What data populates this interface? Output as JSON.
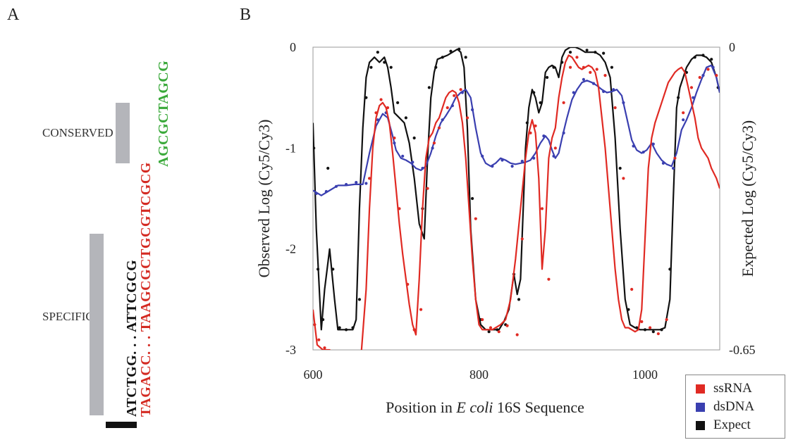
{
  "panels": {
    "a": "A",
    "b": "B"
  },
  "panel_a": {
    "conserved_label": "CONSERVED",
    "specific_label": "SPECIFIC",
    "seq_black": "ATCTGG. . . ATTCGCG",
    "seq_red": "TAGACC. . . TAAGCGCTGCGTCGCG",
    "seq_green": "AGCGCTAGCG",
    "colors": {
      "black": "#111111",
      "red": "#d42a22",
      "green": "#3aa93a",
      "bracket": "#b4b5ba"
    }
  },
  "chart_data": {
    "type": "line",
    "xlabel_prefix": "Position in ",
    "xlabel_italic": "E coli",
    "xlabel_suffix": " 16S Sequence",
    "ylabel_left": "Observed Log (Cy5/Cy3)",
    "ylabel_right": "Expected Log (Cy5/Cy3)",
    "xlim": [
      600,
      1090
    ],
    "ylim_left": [
      -3,
      0
    ],
    "ylim_right": [
      -0.65,
      0
    ],
    "x_ticks": [
      "600",
      "800",
      "1000"
    ],
    "x_tick_values": [
      600,
      800,
      1000
    ],
    "y_ticks_left": [
      "0",
      "-1",
      "-2",
      "-3"
    ],
    "y_tick_values_left": [
      0,
      -1,
      -2,
      -3
    ],
    "y_ticks_right": [
      "0",
      "-0.65"
    ],
    "y_tick_values_right": [
      0,
      -0.65
    ],
    "legend_position": "bottom-right",
    "series": [
      {
        "name": "ssRNA",
        "color": "#e02a23",
        "x": [
          600,
          605,
          612,
          620,
          628,
          636,
          645,
          652,
          658,
          664,
          668,
          672,
          676,
          680,
          684,
          688,
          692,
          696,
          700,
          704,
          708,
          712,
          716,
          720,
          724,
          728,
          732,
          736,
          740,
          744,
          748,
          752,
          756,
          760,
          764,
          768,
          772,
          776,
          780,
          784,
          788,
          792,
          796,
          800,
          804,
          808,
          812,
          816,
          820,
          826,
          832,
          838,
          844,
          850,
          856,
          860,
          864,
          868,
          872,
          876,
          880,
          884,
          888,
          892,
          896,
          900,
          904,
          908,
          912,
          916,
          920,
          924,
          928,
          932,
          936,
          940,
          944,
          948,
          952,
          956,
          960,
          964,
          968,
          972,
          976,
          980,
          984,
          988,
          992,
          996,
          1000,
          1004,
          1008,
          1012,
          1016,
          1020,
          1024,
          1028,
          1032,
          1036,
          1040,
          1044,
          1048,
          1052,
          1056,
          1060,
          1064,
          1068,
          1072,
          1076,
          1080,
          1086,
          1090
        ],
        "y": [
          -2.6,
          -2.95,
          -3.0,
          -3.0,
          -3.05,
          -3.1,
          -3.1,
          -3.1,
          -3.05,
          -2.4,
          -1.6,
          -1.0,
          -0.7,
          -0.58,
          -0.55,
          -0.6,
          -0.75,
          -1.05,
          -1.4,
          -1.75,
          -2.05,
          -2.3,
          -2.55,
          -2.75,
          -2.85,
          -2.3,
          -1.6,
          -1.1,
          -0.9,
          -0.85,
          -0.75,
          -0.7,
          -0.6,
          -0.5,
          -0.45,
          -0.43,
          -0.45,
          -0.55,
          -0.75,
          -1.1,
          -1.6,
          -2.1,
          -2.5,
          -2.75,
          -2.8,
          -2.8,
          -2.8,
          -2.8,
          -2.78,
          -2.75,
          -2.7,
          -2.5,
          -2.1,
          -1.6,
          -1.1,
          -0.85,
          -0.72,
          -0.85,
          -1.3,
          -2.2,
          -1.8,
          -1.1,
          -0.9,
          -0.8,
          -0.5,
          -0.3,
          -0.15,
          -0.08,
          -0.1,
          -0.15,
          -0.2,
          -0.22,
          -0.2,
          -0.18,
          -0.2,
          -0.25,
          -0.4,
          -0.7,
          -1.0,
          -1.4,
          -1.8,
          -2.2,
          -2.5,
          -2.7,
          -2.78,
          -2.78,
          -2.8,
          -2.82,
          -2.8,
          -2.6,
          -1.9,
          -1.2,
          -0.9,
          -0.75,
          -0.65,
          -0.55,
          -0.45,
          -0.35,
          -0.3,
          -0.25,
          -0.22,
          -0.2,
          -0.25,
          -0.4,
          -0.55,
          -0.7,
          -0.9,
          -1.0,
          -1.05,
          -1.1,
          -1.2,
          -1.3,
          -1.4
        ],
        "points_x": [
          602,
          607,
          614,
          622,
          630,
          668,
          676,
          682,
          690,
          698,
          704,
          714,
          722,
          730,
          738,
          746,
          752,
          762,
          770,
          778,
          786,
          796,
          804,
          814,
          824,
          834,
          846,
          852,
          862,
          868,
          876,
          884,
          892,
          902,
          910,
          918,
          926,
          934,
          942,
          952,
          964,
          974,
          984,
          996,
          1006,
          1016,
          1026,
          1036,
          1046,
          1056,
          1066,
          1076,
          1086
        ],
        "points_y": [
          -2.75,
          -2.9,
          -2.98,
          -3.05,
          -3.1,
          -1.3,
          -0.65,
          -0.52,
          -0.6,
          -0.9,
          -1.6,
          -2.35,
          -2.8,
          -2.6,
          -1.4,
          -0.95,
          -0.8,
          -0.6,
          -0.48,
          -0.42,
          -0.7,
          -1.7,
          -2.7,
          -2.78,
          -2.82,
          -2.76,
          -2.85,
          -1.9,
          -0.85,
          -0.78,
          -1.6,
          -2.3,
          -1.0,
          -0.55,
          -0.2,
          -0.1,
          -0.2,
          -0.25,
          -0.22,
          -0.28,
          -0.6,
          -1.3,
          -2.4,
          -2.72,
          -2.78,
          -2.84,
          -2.7,
          -1.1,
          -0.65,
          -0.4,
          -0.3,
          -0.22,
          -0.28
        ]
      },
      {
        "name": "dsDNA",
        "color": "#3a3fb0",
        "x": [
          600,
          610,
          620,
          630,
          640,
          650,
          660,
          668,
          676,
          684,
          690,
          696,
          700,
          706,
          712,
          718,
          724,
          730,
          736,
          742,
          748,
          754,
          760,
          766,
          772,
          778,
          784,
          790,
          796,
          802,
          808,
          814,
          820,
          826,
          832,
          838,
          844,
          850,
          856,
          862,
          868,
          874,
          880,
          884,
          888,
          892,
          896,
          900,
          906,
          912,
          918,
          924,
          930,
          936,
          942,
          948,
          954,
          960,
          966,
          972,
          978,
          984,
          990,
          996,
          1002,
          1008,
          1014,
          1020,
          1026,
          1032,
          1038,
          1044,
          1050,
          1056,
          1062,
          1068,
          1074,
          1080,
          1086,
          1090
        ],
        "y": [
          -1.42,
          -1.47,
          -1.42,
          -1.37,
          -1.37,
          -1.36,
          -1.36,
          -1.05,
          -0.78,
          -0.66,
          -0.7,
          -0.88,
          -1.02,
          -1.1,
          -1.12,
          -1.15,
          -1.2,
          -1.22,
          -1.18,
          -1.05,
          -0.88,
          -0.75,
          -0.68,
          -0.6,
          -0.5,
          -0.45,
          -0.42,
          -0.5,
          -0.8,
          -1.05,
          -1.15,
          -1.18,
          -1.15,
          -1.1,
          -1.12,
          -1.15,
          -1.16,
          -1.15,
          -1.14,
          -1.12,
          -1.05,
          -0.95,
          -0.88,
          -0.92,
          -1.02,
          -1.1,
          -1.05,
          -0.9,
          -0.7,
          -0.52,
          -0.42,
          -0.35,
          -0.33,
          -0.35,
          -0.38,
          -0.42,
          -0.45,
          -0.44,
          -0.42,
          -0.48,
          -0.7,
          -0.92,
          -1.02,
          -1.05,
          -1.02,
          -0.95,
          -1.05,
          -1.12,
          -1.16,
          -1.18,
          -1.05,
          -0.82,
          -0.72,
          -0.6,
          -0.45,
          -0.32,
          -0.2,
          -0.18,
          -0.3,
          -0.45
        ],
        "points_x": [
          604,
          616,
          628,
          640,
          652,
          664,
          678,
          688,
          698,
          708,
          720,
          732,
          744,
          756,
          768,
          780,
          792,
          804,
          816,
          828,
          840,
          852,
          866,
          878,
          890,
          902,
          914,
          926,
          938,
          950,
          962,
          974,
          986,
          998,
          1010,
          1022,
          1034,
          1046,
          1058,
          1070,
          1082
        ],
        "points_y": [
          -1.45,
          -1.43,
          -1.38,
          -1.36,
          -1.34,
          -1.35,
          -0.72,
          -0.65,
          -0.95,
          -1.08,
          -1.14,
          -1.2,
          -1.0,
          -0.72,
          -0.58,
          -0.45,
          -0.62,
          -1.08,
          -1.18,
          -1.12,
          -1.18,
          -1.13,
          -1.1,
          -0.88,
          -1.08,
          -0.85,
          -0.45,
          -0.32,
          -0.36,
          -0.44,
          -0.42,
          -0.55,
          -0.98,
          -1.04,
          -0.96,
          -1.15,
          -1.2,
          -0.72,
          -0.5,
          -0.28,
          -0.2
        ]
      },
      {
        "name": "Expect",
        "color": "#111111",
        "x": [
          600,
          604,
          610,
          614,
          620,
          626,
          630,
          636,
          642,
          648,
          652,
          656,
          660,
          664,
          668,
          674,
          680,
          686,
          690,
          694,
          698,
          704,
          710,
          716,
          722,
          728,
          734,
          738,
          742,
          746,
          750,
          756,
          762,
          768,
          774,
          778,
          782,
          786,
          790,
          796,
          802,
          808,
          812,
          818,
          824,
          830,
          836,
          842,
          846,
          850,
          856,
          860,
          864,
          868,
          872,
          876,
          880,
          884,
          888,
          892,
          896,
          900,
          904,
          910,
          916,
          922,
          928,
          934,
          940,
          946,
          952,
          958,
          964,
          970,
          976,
          982,
          988,
          994,
          1000,
          1006,
          1012,
          1018,
          1024,
          1030,
          1034,
          1038,
          1042,
          1046,
          1050,
          1056,
          1062,
          1068,
          1074,
          1080,
          1086,
          1090
        ],
        "y": [
          -0.75,
          -1.8,
          -2.8,
          -2.4,
          -2.0,
          -2.5,
          -2.8,
          -2.8,
          -2.8,
          -2.8,
          -2.7,
          -1.6,
          -0.8,
          -0.3,
          -0.15,
          -0.1,
          -0.15,
          -0.1,
          -0.2,
          -0.4,
          -0.65,
          -0.7,
          -0.75,
          -0.95,
          -1.3,
          -1.75,
          -1.9,
          -1.1,
          -0.5,
          -0.25,
          -0.12,
          -0.1,
          -0.08,
          -0.05,
          -0.02,
          -0.05,
          -0.2,
          -0.8,
          -1.8,
          -2.5,
          -2.75,
          -2.8,
          -2.8,
          -2.8,
          -2.8,
          -2.72,
          -2.6,
          -2.25,
          -2.45,
          -2.3,
          -1.0,
          -0.6,
          -0.42,
          -0.5,
          -0.65,
          -0.55,
          -0.25,
          -0.2,
          -0.18,
          -0.2,
          -0.3,
          -0.1,
          -0.03,
          0.0,
          0.0,
          -0.02,
          -0.05,
          -0.05,
          -0.05,
          -0.08,
          -0.15,
          -0.3,
          -0.9,
          -1.8,
          -2.5,
          -2.75,
          -2.78,
          -2.8,
          -2.8,
          -2.8,
          -2.8,
          -2.8,
          -2.78,
          -2.5,
          -1.5,
          -0.6,
          -0.4,
          -0.3,
          -0.2,
          -0.12,
          -0.08,
          -0.08,
          -0.1,
          -0.15,
          -0.3,
          -0.45
        ],
        "points_x": [
          601,
          606,
          612,
          618,
          624,
          632,
          640,
          648,
          656,
          664,
          670,
          678,
          686,
          694,
          702,
          712,
          722,
          732,
          740,
          748,
          756,
          766,
          776,
          784,
          792,
          802,
          812,
          822,
          832,
          842,
          848,
          858,
          866,
          874,
          882,
          890,
          900,
          910,
          920,
          930,
          940,
          950,
          960,
          970,
          980,
          990,
          1000,
          1010,
          1020,
          1030,
          1040,
          1050,
          1060,
          1070,
          1080,
          1088
        ],
        "points_y": [
          -1.0,
          -2.2,
          -2.7,
          -1.2,
          -2.2,
          -2.78,
          -2.8,
          -2.78,
          -2.5,
          -0.5,
          -0.2,
          -0.05,
          -0.15,
          -0.2,
          -0.55,
          -0.7,
          -0.9,
          -1.6,
          -0.4,
          -0.2,
          -0.1,
          -0.04,
          -0.02,
          -0.1,
          -1.5,
          -2.7,
          -2.82,
          -2.8,
          -2.75,
          -2.25,
          -2.5,
          -0.75,
          -0.45,
          -0.55,
          -0.3,
          -0.2,
          -0.15,
          -0.05,
          0.02,
          -0.03,
          -0.05,
          -0.06,
          -0.2,
          -1.2,
          -2.6,
          -2.78,
          -2.8,
          -2.82,
          -2.8,
          -2.2,
          -0.5,
          -0.25,
          -0.1,
          -0.08,
          -0.12,
          -0.4
        ]
      }
    ]
  }
}
